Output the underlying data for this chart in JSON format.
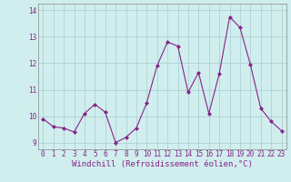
{
  "x": [
    0,
    1,
    2,
    3,
    4,
    5,
    6,
    7,
    8,
    9,
    10,
    11,
    12,
    13,
    14,
    15,
    16,
    17,
    18,
    19,
    20,
    21,
    22,
    23
  ],
  "y": [
    9.9,
    9.6,
    9.55,
    9.4,
    10.1,
    10.45,
    10.15,
    9.0,
    9.2,
    9.55,
    10.5,
    11.9,
    12.8,
    12.65,
    10.9,
    11.65,
    10.1,
    11.6,
    13.75,
    13.35,
    11.95,
    10.3,
    9.8,
    9.45
  ],
  "line_color": "#882288",
  "marker": "D",
  "marker_size": 2.0,
  "bg_color": "#d0eeee",
  "grid_color": "#aacccc",
  "xlabel": "Windchill (Refroidissement éolien,°C)",
  "xlabel_fontsize": 6.5,
  "tick_fontsize": 5.5,
  "tick_label_color": "#882288",
  "axis_label_color": "#882288",
  "ylim": [
    8.75,
    14.25
  ],
  "yticks": [
    9,
    10,
    11,
    12,
    13,
    14
  ],
  "xticks": [
    0,
    1,
    2,
    3,
    4,
    5,
    6,
    7,
    8,
    9,
    10,
    11,
    12,
    13,
    14,
    15,
    16,
    17,
    18,
    19,
    20,
    21,
    22,
    23
  ],
  "xlim": [
    -0.5,
    23.5
  ]
}
